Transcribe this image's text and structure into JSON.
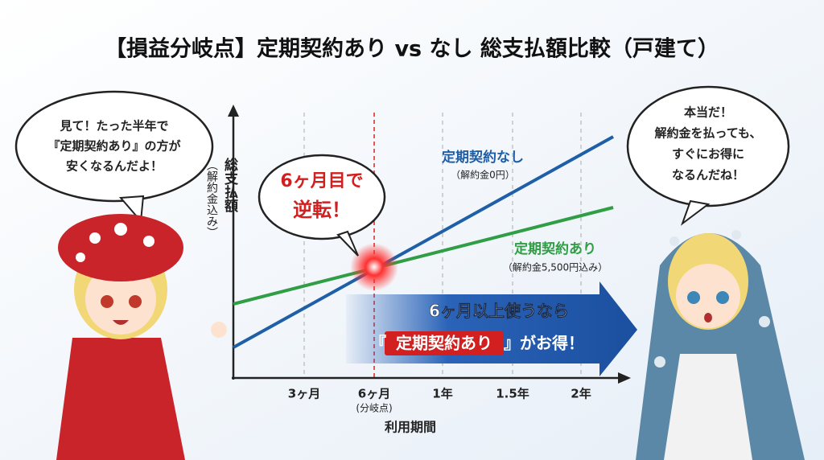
{
  "header": {
    "title": "【損益分岐点】定期契約あり vs なし 総支払額比較（戸建て）"
  },
  "chart": {
    "y_axis_label": "総支払額",
    "y_axis_note": "（解約金込み）",
    "x_axis_label": "利用期間",
    "x_ticks": [
      {
        "label": "3ヶ月"
      },
      {
        "label": "6ヶ月",
        "note": "(分岐点)"
      },
      {
        "label": "1年"
      },
      {
        "label": "1.5年"
      },
      {
        "label": "2年"
      }
    ],
    "series": [
      {
        "name": "定期契約なし",
        "note": "（解約金0円）"
      },
      {
        "name": "定期契約あり",
        "note": "（解約金5,500円込み）"
      }
    ],
    "callout": {
      "lines": [
        "6ヶ月目で",
        "逆転！"
      ]
    },
    "arrow": {
      "line1": "6ヶ月以上使うなら",
      "line2": [
        "『",
        "定期契約あり",
        "』がお得！"
      ]
    }
  },
  "left_bubble": {
    "lines": [
      "見て！たった半年で",
      "『定期契約あり』の方が",
      "安くなるんだよ！"
    ]
  },
  "right_bubble": {
    "lines": [
      "本当だ！",
      "解約金を払っても、",
      "すぐにお得に",
      "なるんだね！"
    ]
  }
}
